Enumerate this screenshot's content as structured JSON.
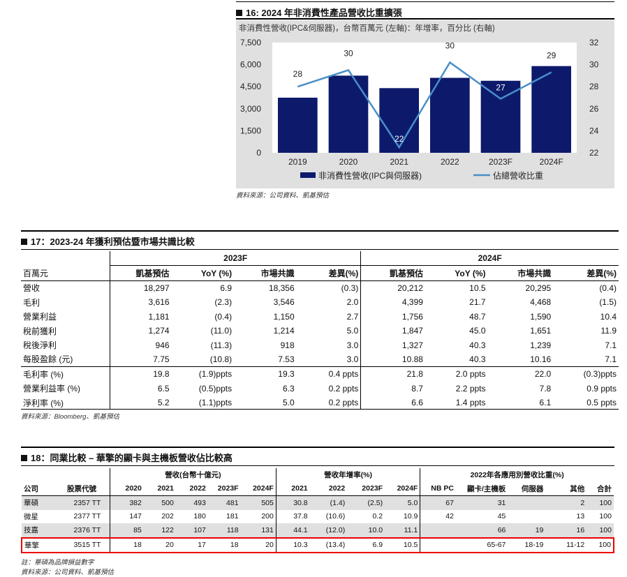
{
  "fig16": {
    "title": "16: 2024 年非消費性產品營收比重擴張",
    "subtitle": "非消費性營收(IPC&伺服器)，台幣百萬元 (左軸)：年增率，百分比 (右軸)",
    "legend_bar": "非消費性營收(IPC與伺服器)",
    "legend_line": "佔總營收比重",
    "source": "資料來源：公司資料、凱基預估"
  },
  "chart_data": {
    "type": "bar",
    "categories": [
      "2019",
      "2020",
      "2021",
      "2022",
      "2023F",
      "2024F"
    ],
    "series": [
      {
        "name": "非消費性營收(IPC與伺服器)",
        "type": "bar",
        "axis": "left",
        "values": [
          3750,
          5250,
          4400,
          5100,
          4900,
          5900
        ]
      },
      {
        "name": "佔總營收比重",
        "type": "line",
        "axis": "right",
        "values": [
          28,
          29.5,
          22.5,
          30.2,
          26.9,
          29.3
        ],
        "labels": [
          "28",
          "30",
          "22",
          "30",
          "27",
          "29"
        ]
      }
    ],
    "y_left": {
      "min": 0,
      "max": 7500,
      "ticks": [
        "0",
        "1,500",
        "3,000",
        "4,500",
        "6,000",
        "7,500"
      ]
    },
    "y_right": {
      "min": 22,
      "max": 32,
      "ticks": [
        "22",
        "24",
        "26",
        "28",
        "30",
        "32"
      ]
    },
    "bar_color": "#0d1a6b",
    "line_color": "#4a8fc8",
    "legend_position": "bottom"
  },
  "fig17": {
    "title": "17：2023-24 年獲利預估暨市場共識比較",
    "group_2023": "2023F",
    "group_2024": "2024F",
    "unit": "百萬元",
    "cols": [
      "凱基預估",
      "YoY (%)",
      "市場共識",
      "差異(%)",
      "凱基預估",
      "YoY (%)",
      "市場共識",
      "差異(%)"
    ],
    "rows": [
      {
        "label": "營收",
        "v": [
          "18,297",
          "6.9",
          "18,356",
          "(0.3)",
          "20,212",
          "10.5",
          "20,295",
          "(0.4)"
        ]
      },
      {
        "label": "毛利",
        "v": [
          "3,616",
          "(2.3)",
          "3,546",
          "2.0",
          "4,399",
          "21.7",
          "4,468",
          "(1.5)"
        ]
      },
      {
        "label": "營業利益",
        "v": [
          "1,181",
          "(0.4)",
          "1,150",
          "2.7",
          "1,756",
          "48.7",
          "1,590",
          "10.4"
        ]
      },
      {
        "label": "稅前獲利",
        "v": [
          "1,274",
          "(11.0)",
          "1,214",
          "5.0",
          "1,847",
          "45.0",
          "1,651",
          "11.9"
        ]
      },
      {
        "label": "稅後淨利",
        "v": [
          "946",
          "(11.3)",
          "918",
          "3.0",
          "1,327",
          "40.3",
          "1,239",
          "7.1"
        ]
      },
      {
        "label": "每股盈餘 (元)",
        "v": [
          "7.75",
          "(10.8)",
          "7.53",
          "3.0",
          "10.88",
          "40.3",
          "10.16",
          "7.1"
        ]
      },
      {
        "label": "毛利率 (%)",
        "v": [
          "19.8",
          "(1.9)ppts",
          "19.3",
          "0.4 ppts",
          "21.8",
          "2.0 ppts",
          "22.0",
          "(0.3)ppts"
        ]
      },
      {
        "label": "營業利益率 (%)",
        "v": [
          "6.5",
          "(0.5)ppts",
          "6.3",
          "0.2 ppts",
          "8.7",
          "2.2 ppts",
          "7.8",
          "0.9 ppts"
        ]
      },
      {
        "label": "淨利率 (%)",
        "v": [
          "5.2",
          "(1.1)ppts",
          "5.0",
          "0.2 ppts",
          "6.6",
          "1.4 ppts",
          "6.1",
          "0.5 ppts"
        ]
      }
    ],
    "source": "資料來源：Bloomberg、凱基預估"
  },
  "fig18": {
    "title": "18：同業比較 – 華擎的顯卡與主機板營收佔比較高",
    "group_rev": "營收(台幣十億元)",
    "group_yoy": "營收年增率(%)",
    "group_mix": "2022年各應用別營收比重(%)",
    "cols": [
      "公司",
      "股票代號",
      "2020",
      "2021",
      "2022",
      "2023F",
      "2024F",
      "2021",
      "2022",
      "2023F",
      "2024F",
      "NB PC",
      "顯卡/主機板",
      "伺服器",
      "其他",
      "合計"
    ],
    "rows": [
      [
        "華碩",
        "2357 TT",
        "382",
        "500",
        "493",
        "481",
        "505",
        "30.8",
        "(1.4)",
        "(2.5)",
        "5.0",
        "67",
        "31",
        "",
        "2",
        "100"
      ],
      [
        "微星",
        "2377 TT",
        "147",
        "202",
        "180",
        "181",
        "200",
        "37.8",
        "(10.6)",
        "0.2",
        "10.9",
        "42",
        "45",
        "",
        "13",
        "100"
      ],
      [
        "技嘉",
        "2376 TT",
        "85",
        "122",
        "107",
        "118",
        "131",
        "44.1",
        "(12.0)",
        "10.0",
        "11.1",
        "",
        "66",
        "19",
        "16",
        "100"
      ],
      [
        "華擎",
        "3515 TT",
        "18",
        "20",
        "17",
        "18",
        "20",
        "10.3",
        "(13.4)",
        "6.9",
        "10.5",
        "",
        "65-67",
        "18-19",
        "11-12",
        "100"
      ]
    ],
    "note": "註：華碩為品牌損益數字",
    "source": "資料來源：公司資料、凱基預估"
  }
}
